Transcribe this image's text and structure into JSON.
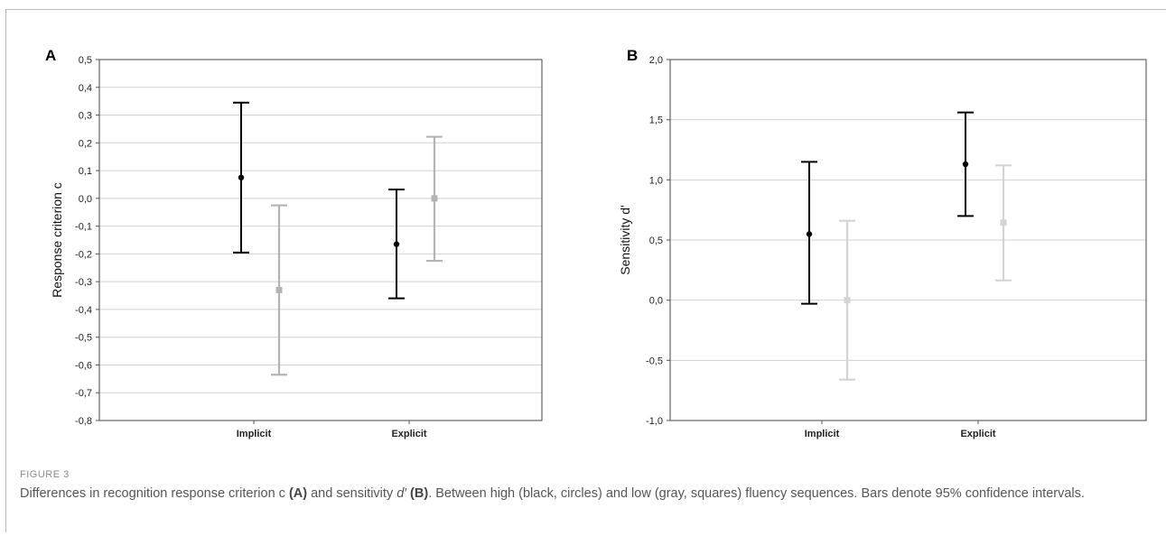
{
  "figure_label": "FIGURE 3",
  "caption": {
    "part1": "Differences in recognition response criterion c ",
    "a": "(A)",
    "part2": " and sensitivity ",
    "dprime": "d′",
    "b": " (B)",
    "part3": ". Between high (black, circles) and low (gray, squares) fluency sequences. Bars denote 95% confidence intervals."
  },
  "colors": {
    "high": "#000000",
    "low_a": "#b3b3b3",
    "low_b": "#d4d4d4",
    "grid": "#d0d0d0"
  },
  "chart_data": [
    {
      "panel": "A",
      "type": "scatter",
      "ylabel": "Response criterion c",
      "xlabel": "",
      "categories": [
        "Implicit",
        "Explicit"
      ],
      "ylim": [
        -0.8,
        0.5
      ],
      "yticks": [
        "0,5",
        "0,4",
        "0,3",
        "0,2",
        "0,1",
        "0,0",
        "-0,1",
        "-0,2",
        "-0,3",
        "-0,4",
        "-0,5",
        "-0,6",
        "-0,7",
        "-0,8"
      ],
      "grid": true,
      "series": [
        {
          "marker": "circle",
          "color": "#000000",
          "values": [
            0.075,
            -0.165
          ],
          "ci_low": [
            -0.195,
            -0.36
          ],
          "ci_high": [
            0.345,
            0.032
          ]
        },
        {
          "marker": "square",
          "color": "#b3b3b3",
          "values": [
            -0.33,
            0.0
          ],
          "ci_low": [
            -0.635,
            -0.225
          ],
          "ci_high": [
            -0.025,
            0.222
          ]
        }
      ]
    },
    {
      "panel": "B",
      "type": "scatter",
      "ylabel": "Sensitivity d'",
      "xlabel": "",
      "categories": [
        "Implicit",
        "Explicit"
      ],
      "ylim": [
        -1.0,
        2.0
      ],
      "yticks": [
        "2,0",
        "1,5",
        "1,0",
        "0,5",
        "0,0",
        "-0,5",
        "-1,0"
      ],
      "grid": true,
      "series": [
        {
          "marker": "circle",
          "color": "#000000",
          "values": [
            0.55,
            1.13
          ],
          "ci_low": [
            -0.03,
            0.7
          ],
          "ci_high": [
            1.15,
            1.56
          ]
        },
        {
          "marker": "square",
          "color": "#d4d4d4",
          "values": [
            0.0,
            0.645
          ],
          "ci_low": [
            -0.66,
            0.165
          ],
          "ci_high": [
            0.66,
            1.12
          ]
        }
      ]
    }
  ]
}
